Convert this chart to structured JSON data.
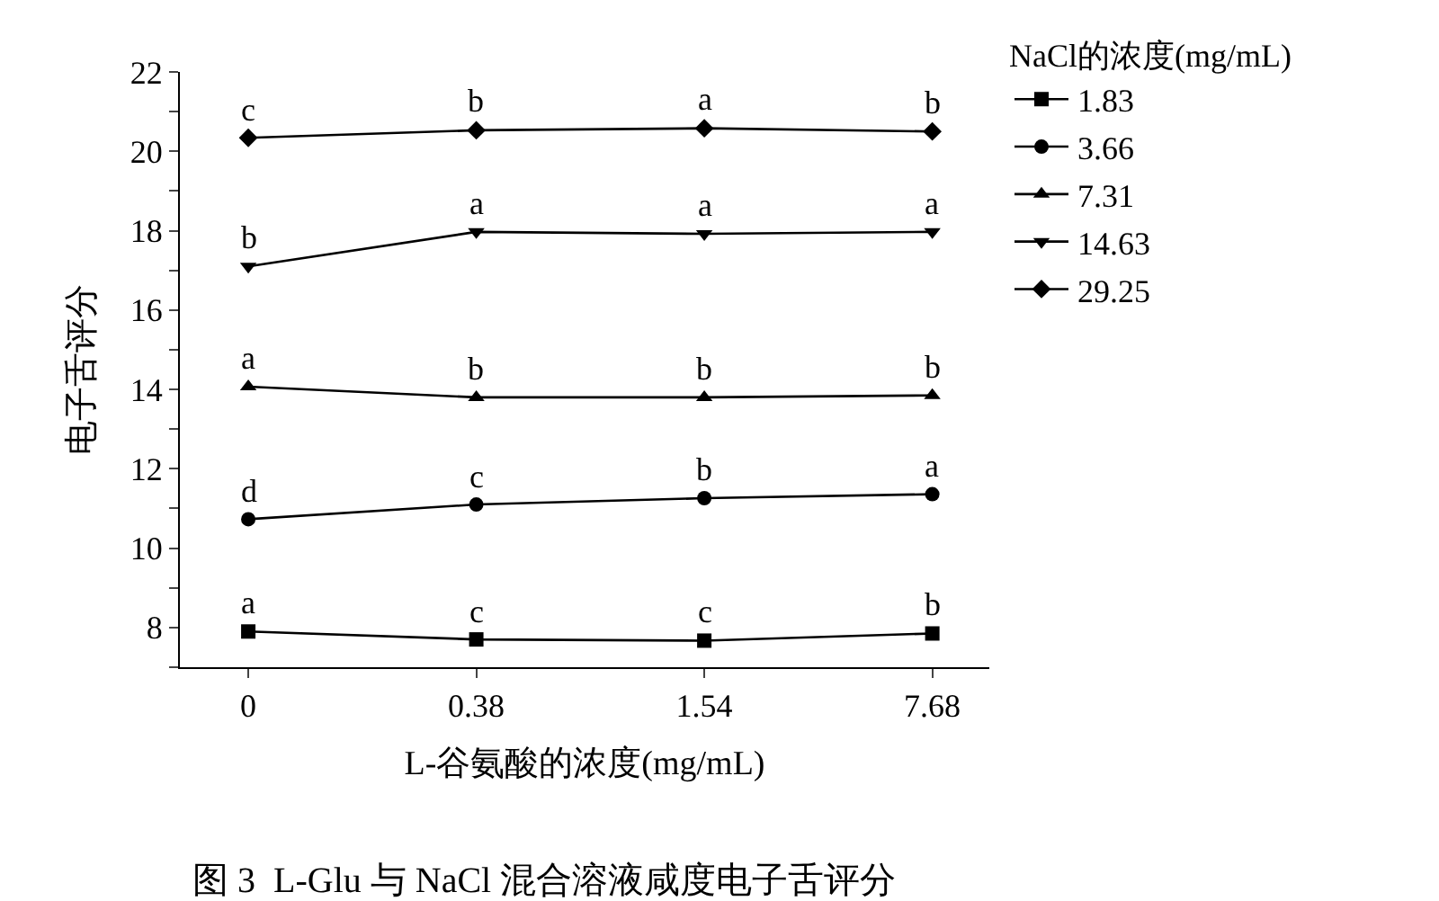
{
  "chart_data": {
    "type": "line",
    "xlabel": "L-谷氨酸的浓度(mg/mL)",
    "ylabel": "电子舌评分",
    "legend_title": "NaCl的浓度(mg/mL)",
    "categories": [
      "0",
      "0.38",
      "1.54",
      "7.68"
    ],
    "series": [
      {
        "name": "1.83",
        "color": "#000000",
        "marker": "square",
        "values": [
          7.9,
          7.7,
          7.67,
          7.85
        ]
      },
      {
        "name": "3.66",
        "color": "#000000",
        "marker": "circle",
        "values": [
          10.73,
          11.1,
          11.26,
          11.36
        ]
      },
      {
        "name": "7.31",
        "color": "#000000",
        "marker": "triangle",
        "values": [
          14.07,
          13.8,
          13.8,
          13.85
        ]
      },
      {
        "name": "14.63",
        "color": "#000000",
        "marker": "triangle-down",
        "values": [
          17.1,
          17.97,
          17.92,
          17.97
        ]
      },
      {
        "name": "29.25",
        "color": "#000000",
        "marker": "diamond",
        "values": [
          20.34,
          20.53,
          20.58,
          20.5
        ]
      }
    ],
    "ylim": [
      7,
      22
    ],
    "yticks": [
      {
        "value": 7,
        "label": null
      },
      8,
      {
        "value": 9,
        "label": null
      },
      10,
      {
        "value": 11,
        "label": null
      },
      12,
      {
        "value": 13,
        "label": null
      },
      14,
      {
        "value": 15,
        "label": null
      },
      16,
      {
        "value": 17,
        "label": null
      },
      18,
      {
        "value": 19,
        "label": null
      },
      20,
      {
        "value": 21,
        "label": null
      },
      22
    ],
    "legend": "top right",
    "line_style": "solid",
    "annotations": [
      {
        "text": "a",
        "x": "0",
        "y": 7.9
      },
      {
        "text": "c",
        "x": "0.38",
        "y": 7.7
      },
      {
        "text": "c",
        "x": "1.54",
        "y": 7.67
      },
      {
        "text": "b",
        "x": "7.68",
        "y": 7.85
      },
      {
        "text": "d",
        "x": "0",
        "y": 10.73
      },
      {
        "text": "c",
        "x": "0.38",
        "y": 11.1
      },
      {
        "text": "b",
        "x": "1.54",
        "y": 11.26
      },
      {
        "text": "a",
        "x": "7.68",
        "y": 11.36
      },
      {
        "text": "a",
        "x": "0",
        "y": 14.07
      },
      {
        "text": "b",
        "x": "0.38",
        "y": 13.8
      },
      {
        "text": "b",
        "x": "1.54",
        "y": 13.8
      },
      {
        "text": "b",
        "x": "7.68",
        "y": 13.85
      },
      {
        "text": "b",
        "x": "0",
        "y": 17.1
      },
      {
        "text": "a",
        "x": "0.38",
        "y": 17.97
      },
      {
        "text": "a",
        "x": "1.54",
        "y": 17.92
      },
      {
        "text": "a",
        "x": "7.68",
        "y": 17.97
      },
      {
        "text": "c",
        "x": "0",
        "y": 20.34
      },
      {
        "text": "b",
        "x": "0.38",
        "y": 20.53
      },
      {
        "text": "a",
        "x": "1.54",
        "y": 20.58
      },
      {
        "text": "b",
        "x": "7.68",
        "y": 20.5
      },
      "图 3  L-Glu 与 NaCl 混合溶液咸度电子舌评分"
    ]
  }
}
